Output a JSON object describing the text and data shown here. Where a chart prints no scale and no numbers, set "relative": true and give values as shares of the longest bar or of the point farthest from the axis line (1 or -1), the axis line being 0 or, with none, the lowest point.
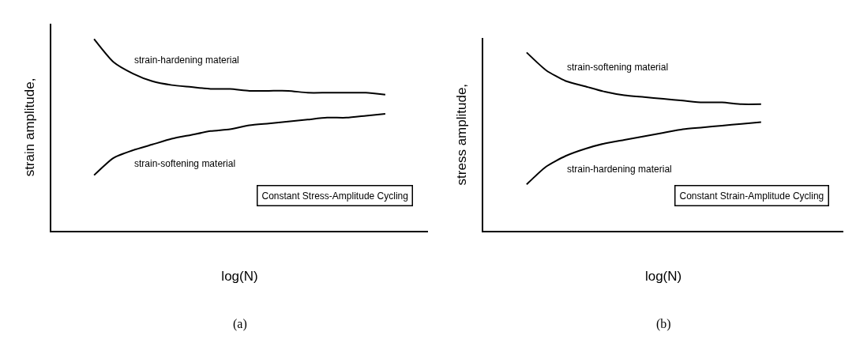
{
  "chart_data": [
    {
      "type": "line",
      "relative": true,
      "ylabel": "strain amplitude,",
      "xlabel": "log(N)",
      "categories": [
        null,
        null,
        null,
        null,
        null,
        null,
        null,
        null,
        null,
        null,
        null,
        null,
        null,
        null,
        null,
        null,
        null,
        null,
        null,
        null
      ],
      "series": [
        {
          "name": "strain-hardening material",
          "color": "#000000",
          "values": [
            null,
            null,
            1,
            0.88,
            0.82,
            0.78,
            0.76,
            0.75,
            0.74,
            0.74,
            0.73,
            0.73,
            0.73,
            0.72,
            0.72,
            0.72,
            0.72,
            0.71,
            null,
            null
          ]
        },
        {
          "name": "strain-softening material",
          "color": "#000000",
          "values": [
            null,
            null,
            0.29,
            0.38,
            0.42,
            0.45,
            0.48,
            0.5,
            0.52,
            0.53,
            0.55,
            0.56,
            0.57,
            0.58,
            0.59,
            0.59,
            0.6,
            0.61,
            null,
            null
          ]
        }
      ],
      "annotations": [
        "Constant Stress-Amplitude Cycling",
        "(a)"
      ],
      "marker": "none",
      "line_style": "solid"
    },
    {
      "type": "line",
      "relative": true,
      "ylabel": "stress amplitude,",
      "xlabel": "log(N)",
      "categories": [
        null,
        null,
        null,
        null,
        null,
        null,
        null,
        null,
        null,
        null,
        null,
        null,
        null,
        null,
        null,
        null,
        null,
        null,
        null
      ],
      "series": [
        {
          "name": "strain-softening material",
          "color": "#000000",
          "values": [
            null,
            null,
            1,
            0.9,
            0.84,
            0.81,
            0.78,
            0.76,
            0.75,
            0.74,
            0.73,
            0.72,
            0.72,
            0.71,
            0.71,
            null,
            null,
            null,
            null
          ]
        },
        {
          "name": "strain-hardening material",
          "color": "#000000",
          "values": [
            null,
            null,
            0.26,
            0.36,
            0.42,
            0.46,
            0.49,
            0.51,
            0.53,
            0.55,
            0.57,
            0.58,
            0.59,
            0.6,
            0.61,
            null,
            null,
            null,
            null
          ]
        }
      ],
      "annotations": [
        "Constant Strain-Amplitude Cycling",
        "(b)"
      ],
      "marker": "none",
      "line_style": "solid"
    }
  ]
}
